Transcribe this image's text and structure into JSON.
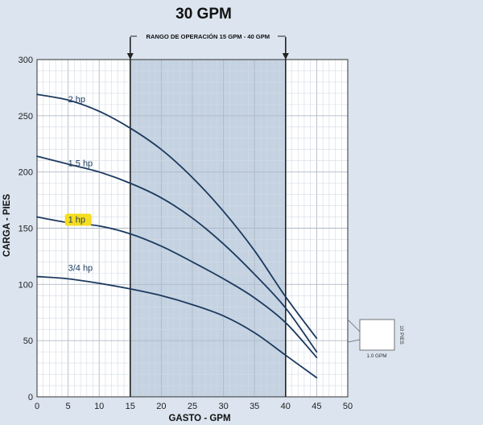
{
  "chart_data": {
    "type": "line",
    "title": "30 GPM",
    "xlabel": "GASTO - GPM",
    "ylabel": "CARGA - PIES",
    "xlim": [
      0,
      50
    ],
    "ylim": [
      0,
      300
    ],
    "x_ticks": [
      0,
      5,
      10,
      15,
      20,
      25,
      30,
      35,
      40,
      45,
      50
    ],
    "y_ticks": [
      0,
      50,
      100,
      150,
      200,
      250,
      300
    ],
    "grid": true,
    "operating_range": {
      "label": "RANGO DE OPERACIÓN 15 GPM - 40 GPM",
      "from": 15,
      "to": 40
    },
    "scale_box": {
      "x_label": "1.0 GPM",
      "y_label": "10 PIES"
    },
    "series": [
      {
        "name": "2 hp",
        "x": [
          0,
          5,
          10,
          15,
          20,
          25,
          30,
          35,
          40,
          45
        ],
        "values": [
          269,
          264,
          254,
          239,
          220,
          195,
          165,
          130,
          89,
          52
        ],
        "label_at": [
          5,
          262
        ],
        "highlight": false
      },
      {
        "name": "1.5 hp",
        "x": [
          0,
          5,
          10,
          15,
          20,
          25,
          30,
          35,
          40,
          45
        ],
        "values": [
          214,
          207,
          200,
          190,
          177,
          159,
          136,
          109,
          79,
          40
        ],
        "label_at": [
          5,
          205
        ],
        "highlight": false
      },
      {
        "name": "1 hp",
        "x": [
          0,
          5,
          10,
          15,
          20,
          25,
          30,
          35,
          40,
          45
        ],
        "values": [
          160,
          155,
          152,
          145,
          134,
          120,
          105,
          88,
          66,
          35
        ],
        "label_at": [
          5,
          155
        ],
        "highlight": true
      },
      {
        "name": "3/4 hp",
        "x": [
          0,
          5,
          10,
          15,
          20,
          25,
          30,
          35,
          40,
          45
        ],
        "values": [
          107,
          105,
          101,
          96,
          90,
          82,
          72,
          57,
          37,
          17
        ],
        "label_at": [
          5,
          112
        ],
        "highlight": false
      }
    ]
  },
  "colors": {
    "background": "#dbe4ef",
    "plot_bg": "#ffffff",
    "range_fill": "#c4d2e1",
    "minor_grid": "#d3dbe5",
    "major_grid": "#b0b9c6",
    "curve": "#1c3a5e",
    "highlight": "#f5dd20"
  }
}
